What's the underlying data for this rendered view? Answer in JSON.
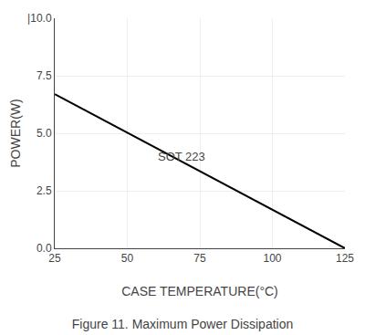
{
  "chart_data": {
    "type": "line",
    "title": "Figure 11. Maximum Power Dissipation",
    "x_label": "CASE TEMPERATURE(°C)",
    "y_label": "POWER(W)",
    "x": [
      25,
      125
    ],
    "values": [
      6.7,
      0.0
    ],
    "color": "#000000",
    "xlim": [
      25,
      125
    ],
    "ylim": [
      0.0,
      10.0
    ],
    "xticks": [
      25,
      50,
      75,
      100,
      125
    ],
    "yticks": [
      {
        "value": 0.0,
        "label": "0.0"
      },
      2.5,
      {
        "value": 5.0,
        "label": "5.0"
      },
      7.5,
      {
        "value": 10.0,
        "label": "|10.0"
      }
    ],
    "grid": true,
    "annotations": [
      {
        "text": "SOT 223",
        "x": 60,
        "y": 3.6
      }
    ]
  }
}
